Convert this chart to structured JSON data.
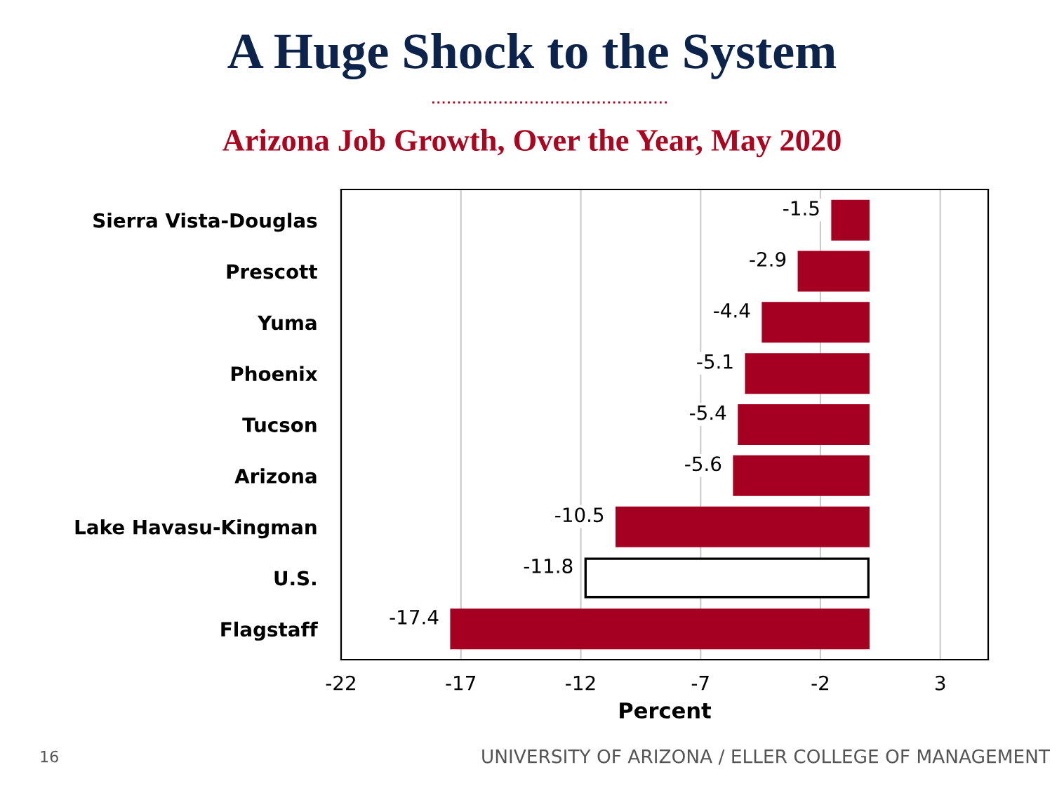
{
  "chart_data": {
    "type": "bar",
    "orientation": "horizontal",
    "title": "A Huge Shock to the System",
    "subtitle": "Arizona Job Growth, Over the Year, May 2020",
    "xlabel": "Percent",
    "categories": [
      "Sierra Vista-Douglas",
      "Prescott",
      "Yuma",
      "Phoenix",
      "Tucson",
      "Arizona",
      "Lake Havasu-Kingman",
      "U.S.",
      "Flagstaff"
    ],
    "values": [
      -1.5,
      -2.9,
      -4.4,
      -5.1,
      -5.4,
      -5.6,
      -10.5,
      -11.8,
      -17.4
    ],
    "colors": [
      "#a50021",
      "#a50021",
      "#a50021",
      "#a50021",
      "#a50021",
      "#a50021",
      "#a50021",
      "#ffffff",
      "#a50021"
    ],
    "xlim": [
      -22,
      5
    ],
    "xticks": [
      -22,
      -17,
      -12,
      -7,
      -2,
      3
    ],
    "grid": "x",
    "data_labels": true,
    "annotations": [
      "16",
      "UNIVERSITY OF ARIZONA / ELLER COLLEGE OF MANAGEMENT"
    ]
  }
}
